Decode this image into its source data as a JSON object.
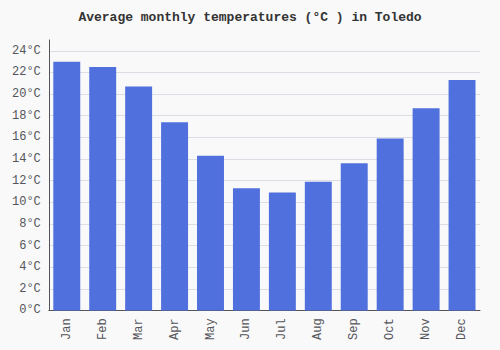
{
  "chart_data": {
    "type": "bar",
    "title": "Average monthly temperatures (°C ) in Toledo",
    "categories": [
      "Jan",
      "Feb",
      "Mar",
      "Apr",
      "May",
      "Jun",
      "Jul",
      "Aug",
      "Sep",
      "Oct",
      "Nov",
      "Dec"
    ],
    "values": [
      23.0,
      22.5,
      20.7,
      17.4,
      14.3,
      11.3,
      10.9,
      11.9,
      13.6,
      15.9,
      18.7,
      21.3
    ],
    "ylim": [
      0,
      25
    ],
    "yticks": [
      {
        "value": 0,
        "label": "0°C"
      },
      {
        "value": 2,
        "label": "2°C"
      },
      {
        "value": 4,
        "label": "4°C"
      },
      {
        "value": 6,
        "label": "6°C"
      },
      {
        "value": 8,
        "label": "8°C"
      },
      {
        "value": 10,
        "label": "10°C"
      },
      {
        "value": 12,
        "label": "12°C"
      },
      {
        "value": 14,
        "label": "14°C"
      },
      {
        "value": 16,
        "label": "16°C"
      },
      {
        "value": 18,
        "label": "18°C"
      },
      {
        "value": 20,
        "label": "20°C"
      },
      {
        "value": 22,
        "label": "22°C"
      },
      {
        "value": 24,
        "label": "24°C"
      }
    ],
    "grid": true
  }
}
